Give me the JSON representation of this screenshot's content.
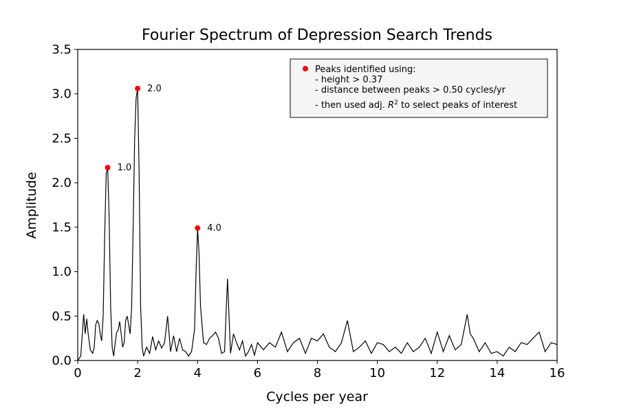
{
  "chart_data": {
    "type": "line",
    "title": "Fourier Spectrum of Depression Search Trends",
    "xlabel": "Cycles per year",
    "ylabel": "Amplitude",
    "xlim": [
      0,
      16
    ],
    "ylim": [
      0,
      3.5
    ],
    "xticks": [
      0,
      2,
      4,
      6,
      8,
      10,
      12,
      14,
      16
    ],
    "xtick_labels": [
      "0",
      "2",
      "4",
      "6",
      "8",
      "10",
      "12",
      "14",
      "16"
    ],
    "yticks": [
      0,
      0.5,
      1.0,
      1.5,
      2.0,
      2.5,
      3.0,
      3.5
    ],
    "ytick_labels": [
      "0.0",
      "0.5",
      "1.0",
      "1.5",
      "2.0",
      "2.5",
      "3.0",
      "3.5"
    ],
    "grid": false,
    "line_color": "#000000",
    "peak_color": "#ff0000",
    "series": [
      {
        "x": [
          0,
          0.1,
          0.2,
          0.25,
          0.3,
          0.35,
          0.42,
          0.5,
          0.55,
          0.6,
          0.65,
          0.7,
          0.75,
          0.8,
          0.85,
          0.9,
          0.95,
          1.0,
          1.05,
          1.1,
          1.15,
          1.2,
          1.25,
          1.3,
          1.35,
          1.4,
          1.45,
          1.5,
          1.55,
          1.6,
          1.65,
          1.7,
          1.75,
          1.8,
          1.85,
          1.9,
          1.95,
          2.0,
          2.05,
          2.1,
          2.15,
          2.2,
          2.3,
          2.4,
          2.5,
          2.6,
          2.7,
          2.8,
          2.9,
          3.0,
          3.1,
          3.2,
          3.3,
          3.4,
          3.5,
          3.6,
          3.7,
          3.8,
          3.9,
          3.95,
          4.0,
          4.05,
          4.1,
          4.2,
          4.3,
          4.4,
          4.5,
          4.6,
          4.7,
          4.8,
          4.9,
          5.0,
          5.1,
          5.2,
          5.3,
          5.4,
          5.5,
          5.6,
          5.7,
          5.8,
          5.9,
          6.0,
          6.2,
          6.4,
          6.6,
          6.8,
          7.0,
          7.2,
          7.4,
          7.6,
          7.8,
          8.0,
          8.2,
          8.4,
          8.6,
          8.8,
          9.0,
          9.2,
          9.4,
          9.6,
          9.8,
          10.0,
          10.2,
          10.4,
          10.6,
          10.8,
          11.0,
          11.2,
          11.4,
          11.6,
          11.8,
          12.0,
          12.2,
          12.4,
          12.6,
          12.8,
          13.0,
          13.1,
          13.2,
          13.4,
          13.6,
          13.8,
          14.0,
          14.2,
          14.4,
          14.6,
          14.8,
          15.0,
          15.2,
          15.4,
          15.6,
          15.8,
          16.0
        ],
        "y": [
          0.0,
          0.05,
          0.52,
          0.3,
          0.47,
          0.3,
          0.12,
          0.08,
          0.15,
          0.4,
          0.45,
          0.42,
          0.3,
          0.22,
          0.5,
          1.4,
          2.1,
          2.17,
          1.6,
          0.6,
          0.15,
          0.05,
          0.2,
          0.32,
          0.34,
          0.44,
          0.3,
          0.15,
          0.2,
          0.45,
          0.5,
          0.4,
          0.3,
          0.6,
          1.5,
          2.5,
          2.95,
          3.06,
          2.1,
          0.6,
          0.15,
          0.05,
          0.15,
          0.08,
          0.27,
          0.12,
          0.22,
          0.14,
          0.2,
          0.5,
          0.1,
          0.28,
          0.1,
          0.25,
          0.12,
          0.1,
          0.05,
          0.1,
          0.35,
          1.0,
          1.49,
          1.2,
          0.6,
          0.2,
          0.18,
          0.25,
          0.28,
          0.32,
          0.25,
          0.08,
          0.1,
          0.92,
          0.08,
          0.3,
          0.2,
          0.12,
          0.22,
          0.05,
          0.1,
          0.18,
          0.06,
          0.2,
          0.12,
          0.2,
          0.15,
          0.32,
          0.1,
          0.2,
          0.25,
          0.08,
          0.25,
          0.22,
          0.3,
          0.15,
          0.1,
          0.2,
          0.45,
          0.1,
          0.15,
          0.22,
          0.08,
          0.2,
          0.18,
          0.1,
          0.15,
          0.08,
          0.2,
          0.1,
          0.15,
          0.25,
          0.08,
          0.32,
          0.1,
          0.28,
          0.12,
          0.18,
          0.52,
          0.3,
          0.25,
          0.1,
          0.2,
          0.08,
          0.1,
          0.05,
          0.15,
          0.1,
          0.2,
          0.18,
          0.25,
          0.32,
          0.1,
          0.2,
          0.18
        ]
      }
    ],
    "peaks": [
      {
        "x": 1.0,
        "y": 2.17,
        "label": "1.0"
      },
      {
        "x": 2.0,
        "y": 3.06,
        "label": "2.0"
      },
      {
        "x": 4.0,
        "y": 1.49,
        "label": "4.0"
      }
    ],
    "legend": {
      "position": "upper right",
      "lines": [
        "Peaks identified using:",
        "- height > 0.37",
        "- distance between peaks > 0.50 cycles/yr",
        "- then used adj. R² to select peaks of interest"
      ]
    }
  }
}
